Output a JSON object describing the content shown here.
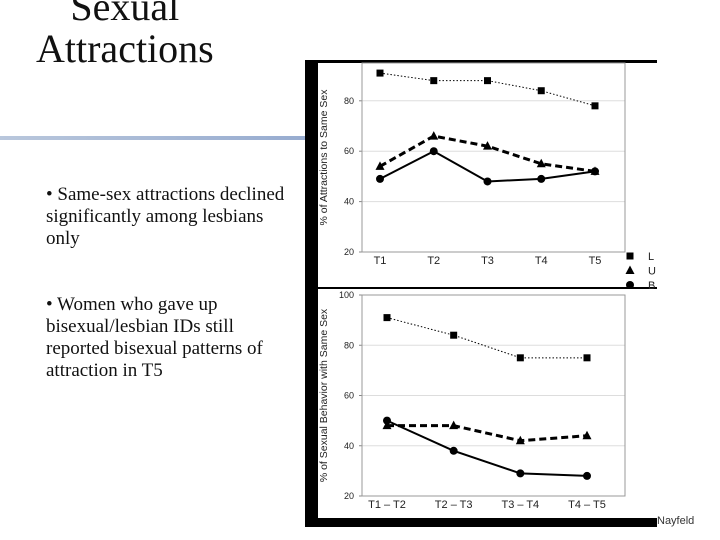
{
  "slide": {
    "title_lines": [
      "Sexual",
      "Attractions"
    ],
    "bullets": [
      "• Same-sex attractions declined significantly among lesbians only",
      "• Women who gave up bisexual/lesbian IDs still reported bisexual patterns of attraction in T5"
    ],
    "footer": "Nayfeld"
  },
  "chart_data": [
    {
      "type": "line",
      "y_label": "% of Attractions to Same Sex",
      "categories": [
        "T1",
        "T2",
        "T3",
        "T4",
        "T5"
      ],
      "ylim": [
        20,
        95
      ],
      "yticks": [
        20,
        40,
        60,
        80
      ],
      "grid": true,
      "series": [
        {
          "name": "L",
          "color": "#000000",
          "marker": "square",
          "line_style": "dotted",
          "values": [
            91,
            88,
            88,
            84,
            78
          ]
        },
        {
          "name": "U",
          "color": "#000000",
          "marker": "triangle",
          "line_style": "dashed",
          "values": [
            54,
            66,
            62,
            55,
            52
          ]
        },
        {
          "name": "B",
          "color": "#000000",
          "marker": "circle",
          "line_style": "solid",
          "values": [
            49,
            60,
            48,
            49,
            52
          ]
        }
      ]
    },
    {
      "type": "line",
      "y_label": "% of Sexual Behavior with Same Sex",
      "categories": [
        "T1 – T2",
        "T2 – T3",
        "T3 – T4",
        "T4 – T5"
      ],
      "ylim": [
        20,
        100
      ],
      "yticks": [
        20,
        40,
        60,
        80,
        100
      ],
      "grid": true,
      "series": [
        {
          "color": "#000000",
          "marker": "square",
          "line_style": "dotted",
          "values": [
            91,
            84,
            75,
            75
          ]
        },
        {
          "color": "#000000",
          "marker": "triangle",
          "line_style": "dashed",
          "values": [
            48,
            48,
            42,
            44
          ]
        },
        {
          "color": "#000000",
          "marker": "circle",
          "line_style": "solid",
          "values": [
            50,
            38,
            29,
            28
          ]
        }
      ]
    }
  ]
}
